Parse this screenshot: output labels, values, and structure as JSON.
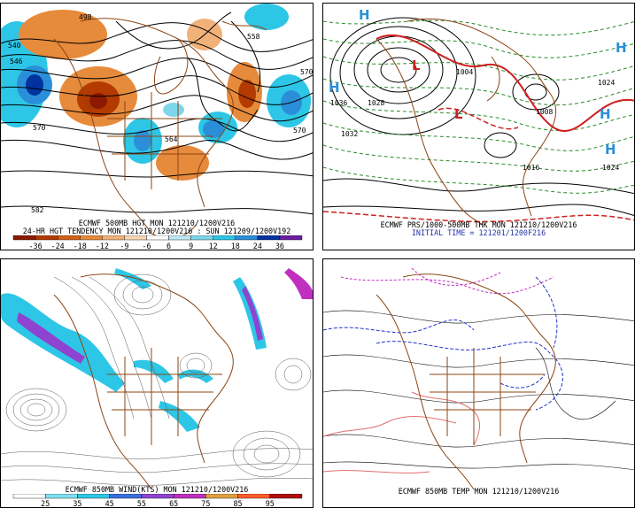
{
  "panels": {
    "p1": {
      "title_line1": "ECMWF 500MB HGT MON 121210/1200V216",
      "title_line2": "24-HR HGT TENDENCY MON 121210/1200V216 : SUN 121209/1200V192",
      "colorbar": {
        "labels": [
          "-36",
          "-24",
          "-18",
          "-12",
          "-9",
          "-6",
          "6",
          "9",
          "12",
          "18",
          "24",
          "36"
        ],
        "colors": [
          "#8b1a00",
          "#b33a00",
          "#d2611a",
          "#e68a3c",
          "#f1b27a",
          "#f8d6b3",
          "#ffffff",
          "#bfe8f2",
          "#7fd6ea",
          "#2ec6e6",
          "#2a8fd8",
          "#0033a0",
          "#6a1fa0"
        ]
      },
      "contour_labels": [
        "498",
        "540",
        "546",
        "570",
        "582",
        "558",
        "570",
        "570",
        "564"
      ]
    },
    "p2": {
      "title_line1": "ECMWF PRS/1000-500MB THK MON 121210/1200V216",
      "title_line2": "INITIAL TIME = 121201/1200F216",
      "pressure_labels": [
        "1028",
        "1032",
        "1024",
        "1016",
        "1024",
        "1004",
        "1036",
        "1008"
      ],
      "h_marks": [
        "H",
        "H",
        "H",
        "H",
        "H"
      ],
      "l_marks": [
        "L",
        "L"
      ]
    },
    "p3": {
      "title": "ECMWF 850MB WIND(KTS) MON 121210/1200V216",
      "colorbar": {
        "labels": [
          "25",
          "35",
          "45",
          "55",
          "65",
          "75",
          "85",
          "95"
        ],
        "colors": [
          "#ffffff",
          "#7fe0f0",
          "#2ec6e6",
          "#3a6ee0",
          "#8e44d0",
          "#c02fbf",
          "#e0a040",
          "#ff5a2a",
          "#b01010"
        ]
      }
    },
    "p4": {
      "title": "ECMWF 850MB TEMP MON 121210/1200V216"
    }
  }
}
